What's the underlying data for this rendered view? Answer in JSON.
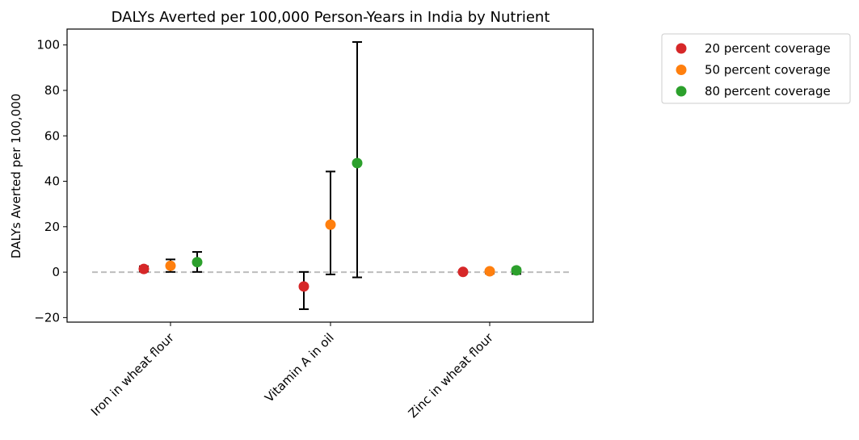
{
  "chart_data": {
    "type": "scatter",
    "title": "DALYs Averted per 100,000 Person-Years in India by Nutrient",
    "xlabel": "",
    "ylabel": "DALYs Averted per 100,000",
    "categories": [
      "Iron in wheat flour",
      "Vitamin A in oil",
      "Zinc in wheat flour"
    ],
    "ylim": [
      -22,
      107
    ],
    "yticks": [
      -20,
      0,
      20,
      40,
      60,
      80,
      100
    ],
    "reference_line": 0,
    "grid": false,
    "legend_position": "outside top-right",
    "series": [
      {
        "name": "20 percent coverage",
        "color": "#d62728",
        "values": [
          1.4,
          -6.3,
          0.1
        ],
        "lower": [
          0.3,
          -16.3,
          -0.4
        ],
        "upper": [
          2.6,
          0.1,
          0.6
        ]
      },
      {
        "name": "50 percent coverage",
        "color": "#ff7f0e",
        "values": [
          2.8,
          20.9,
          0.4
        ],
        "lower": [
          0.1,
          -1.0,
          -0.6
        ],
        "upper": [
          5.6,
          44.3,
          1.0
        ]
      },
      {
        "name": "80 percent coverage",
        "color": "#2ca02c",
        "values": [
          4.4,
          48.0,
          0.8
        ],
        "lower": [
          0.1,
          -2.3,
          -0.8
        ],
        "upper": [
          8.9,
          101.3,
          1.6
        ]
      }
    ]
  }
}
